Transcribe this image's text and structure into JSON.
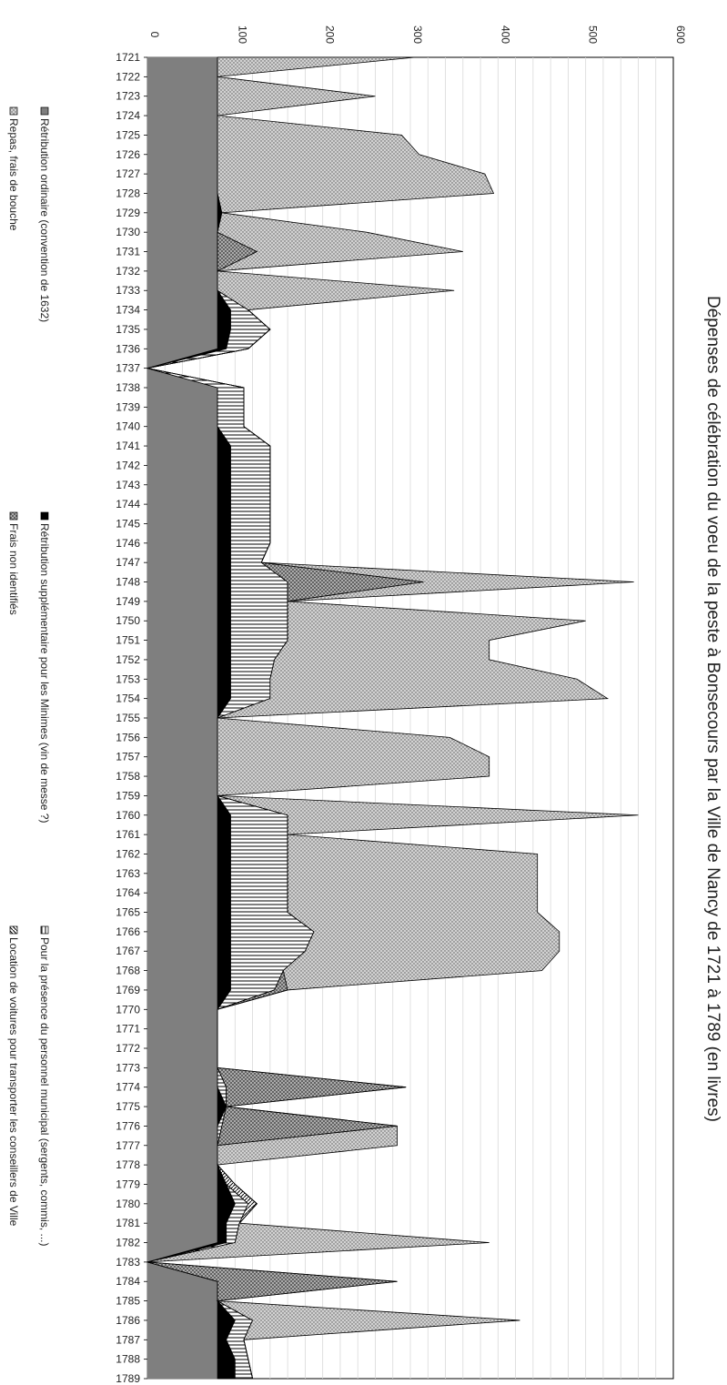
{
  "chart_data": {
    "type": "area",
    "stacked": true,
    "orientation": "rotated-90",
    "title": "Dépenses de célébration du voeu de la peste à Bonsecours par la Ville de Nancy de 1721 à 1789 (en livres)",
    "ylim": [
      0,
      600
    ],
    "yticks": [
      "0",
      "100",
      "200",
      "300",
      "400",
      "500",
      "600"
    ],
    "grid": true,
    "legend_position": "left",
    "x": [
      1721,
      1722,
      1723,
      1724,
      1725,
      1726,
      1727,
      1728,
      1729,
      1730,
      1731,
      1732,
      1733,
      1734,
      1735,
      1736,
      1737,
      1738,
      1739,
      1740,
      1741,
      1742,
      1743,
      1744,
      1745,
      1746,
      1747,
      1748,
      1749,
      1750,
      1751,
      1752,
      1753,
      1754,
      1755,
      1756,
      1757,
      1758,
      1759,
      1760,
      1761,
      1762,
      1763,
      1764,
      1765,
      1766,
      1767,
      1768,
      1769,
      1770,
      1771,
      1772,
      1773,
      1774,
      1775,
      1776,
      1777,
      1778,
      1779,
      1780,
      1781,
      1782,
      1783,
      1784,
      1785,
      1786,
      1787,
      1788,
      1789
    ],
    "x_labels": [
      "1721",
      "1722",
      "1723",
      "1724",
      "1725",
      "1726",
      "1727",
      "1728",
      "1729",
      "1730",
      "1731",
      "1732",
      "1733",
      "1734",
      "1735",
      "1736",
      "1737",
      "1738",
      "1739",
      "1740",
      "1741",
      "1742",
      "1743",
      "1744",
      "1745",
      "1746",
      "1747",
      "1748",
      "1749",
      "1750",
      "1751",
      "1752",
      "1753",
      "1754",
      "1755",
      "1756",
      "1757",
      "1758",
      "1759",
      "1760",
      "1761",
      "1762",
      "1763",
      "1764",
      "1765",
      "1766",
      "1767",
      "1768",
      "1769",
      "1770",
      "1771",
      "1772",
      "1773",
      "1774",
      "1775",
      "1776",
      "1777",
      "1778",
      "1779",
      "1780",
      "1781",
      "1782",
      "1783",
      "1784",
      "1785",
      "1786",
      "1787",
      "1788",
      "1789"
    ],
    "series": [
      {
        "name": "Rétribution ordinaire (convention de 1632)",
        "color": "#7f7f7f",
        "pattern": "solid",
        "values": [
          80,
          80,
          80,
          80,
          80,
          80,
          80,
          80,
          80,
          80,
          80,
          80,
          80,
          80,
          80,
          80,
          0,
          80,
          80,
          80,
          80,
          80,
          80,
          80,
          80,
          80,
          80,
          80,
          80,
          80,
          80,
          80,
          80,
          80,
          80,
          80,
          80,
          80,
          80,
          80,
          80,
          80,
          80,
          80,
          80,
          80,
          80,
          80,
          80,
          80,
          80,
          80,
          80,
          80,
          80,
          80,
          80,
          80,
          80,
          80,
          80,
          80,
          0,
          80,
          80,
          80,
          80,
          80,
          80
        ]
      },
      {
        "name": "Rétribution supplémentaire pour les Minimes (vin de messe ?)",
        "color": "#000000",
        "pattern": "solid",
        "values": [
          0,
          0,
          0,
          0,
          0,
          0,
          0,
          0,
          5,
          0,
          0,
          0,
          0,
          15,
          15,
          10,
          0,
          0,
          0,
          0,
          15,
          15,
          15,
          15,
          15,
          15,
          15,
          15,
          15,
          15,
          15,
          15,
          15,
          15,
          0,
          0,
          0,
          0,
          0,
          15,
          15,
          15,
          15,
          15,
          15,
          15,
          15,
          15,
          15,
          0,
          0,
          0,
          0,
          0,
          10,
          0,
          0,
          0,
          10,
          20,
          10,
          10,
          0,
          0,
          0,
          20,
          10,
          20,
          20
        ]
      },
      {
        "name": "Pour la présence du personnel municipal (sergents, commis, ...)",
        "color": "#ffffff",
        "pattern": "hlines",
        "values": [
          0,
          0,
          0,
          0,
          0,
          0,
          0,
          0,
          0,
          0,
          0,
          0,
          0,
          20,
          45,
          25,
          0,
          30,
          30,
          30,
          45,
          45,
          45,
          45,
          45,
          45,
          35,
          65,
          65,
          65,
          65,
          50,
          45,
          45,
          0,
          0,
          0,
          0,
          0,
          65,
          65,
          65,
          65,
          65,
          65,
          95,
          85,
          60,
          50,
          0,
          0,
          0,
          0,
          10,
          0,
          5,
          0,
          0,
          0,
          15,
          15,
          10,
          0,
          0,
          0,
          20,
          20,
          15,
          20
        ]
      },
      {
        "name": "Location de voitures pour transporter les conseillers de Ville",
        "color": "#ffffff",
        "pattern": "diag",
        "values": [
          0,
          0,
          0,
          0,
          0,
          0,
          0,
          0,
          0,
          0,
          0,
          0,
          0,
          0,
          0,
          0,
          0,
          0,
          0,
          0,
          0,
          0,
          0,
          0,
          0,
          0,
          0,
          0,
          0,
          0,
          0,
          0,
          0,
          0,
          0,
          0,
          0,
          0,
          0,
          0,
          0,
          0,
          0,
          0,
          0,
          0,
          0,
          0,
          0,
          0,
          0,
          0,
          0,
          0,
          0,
          0,
          0,
          0,
          10,
          10,
          0,
          0,
          0,
          0,
          0,
          0,
          0,
          0,
          0
        ]
      },
      {
        "name": "Frais non identifiés",
        "color": "#b0b0b0",
        "pattern": "crosshatch",
        "values": [
          0,
          0,
          0,
          0,
          0,
          0,
          0,
          0,
          0,
          0,
          45,
          0,
          0,
          0,
          0,
          0,
          0,
          0,
          0,
          0,
          0,
          0,
          0,
          0,
          0,
          0,
          0,
          155,
          0,
          0,
          0,
          0,
          0,
          0,
          0,
          0,
          0,
          0,
          0,
          0,
          0,
          0,
          0,
          0,
          0,
          0,
          0,
          0,
          15,
          0,
          0,
          0,
          0,
          205,
          0,
          200,
          0,
          0,
          0,
          0,
          0,
          0,
          0,
          205,
          0,
          0,
          0,
          0,
          0
        ]
      },
      {
        "name": "Repas, frais de bouche",
        "color": "#cfcfcf",
        "pattern": "dots",
        "values": [
          225,
          0,
          180,
          0,
          210,
          230,
          305,
          315,
          0,
          170,
          235,
          0,
          270,
          0,
          0,
          0,
          0,
          0,
          0,
          0,
          0,
          0,
          0,
          0,
          0,
          0,
          0,
          240,
          0,
          340,
          230,
          245,
          350,
          385,
          0,
          265,
          310,
          310,
          0,
          400,
          0,
          285,
          285,
          285,
          285,
          280,
          290,
          295,
          0,
          0,
          0,
          0,
          0,
          0,
          0,
          0,
          205,
          0,
          0,
          0,
          0,
          290,
          0,
          0,
          0,
          305,
          0,
          0,
          0
        ]
      }
    ]
  }
}
